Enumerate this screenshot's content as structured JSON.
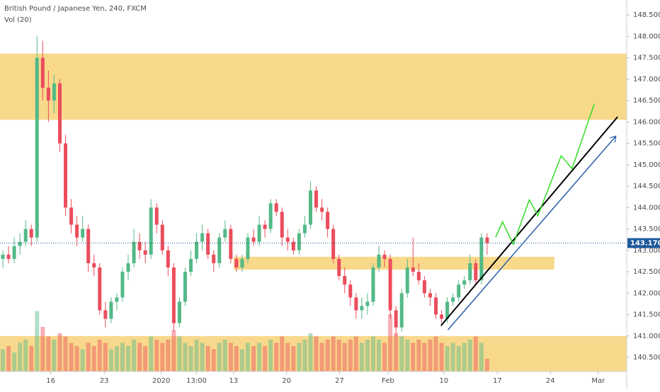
{
  "chart_data": {
    "type": "candlestick",
    "title": "British Pound / Japanese Yen, 240, FXCM",
    "subtitle": "Vol (20)",
    "up_color": "#53b987",
    "down_color": "#eb4d5c",
    "zone_color": "#f7d57f",
    "xlim": [
      0,
      110
    ],
    "ylim": [
      140.17,
      148.85
    ],
    "vlim": [
      0,
      100
    ],
    "yticks": [
      {
        "value": 140.5,
        "label": "140.500"
      },
      {
        "value": 141,
        "label": "141.000"
      },
      {
        "value": 141.5,
        "label": "141.500"
      },
      {
        "value": 142,
        "label": "142.000"
      },
      {
        "value": 142.5,
        "label": "142.500"
      },
      {
        "value": 143,
        "label": "143.000"
      },
      {
        "value": 143.5,
        "label": "143.500"
      },
      {
        "value": 144,
        "label": "144.000"
      },
      {
        "value": 144.5,
        "label": "144.500"
      },
      {
        "value": 145,
        "label": "145.000"
      },
      {
        "value": 145.5,
        "label": "145.500"
      },
      {
        "value": 146,
        "label": "146.000"
      },
      {
        "value": 146.5,
        "label": "146.500"
      },
      {
        "value": 147,
        "label": "147.000"
      },
      {
        "value": 147.5,
        "label": "147.500"
      },
      {
        "value": 148,
        "label": "148.000"
      },
      {
        "value": 148.5,
        "label": "148.500"
      }
    ],
    "xticks": [
      {
        "value": 8.9,
        "label": "16"
      },
      {
        "value": 18.3,
        "label": "23"
      },
      {
        "value": 28.3,
        "label": "2020"
      },
      {
        "value": 34.5,
        "label": "13:00"
      },
      {
        "value": 41,
        "label": "13"
      },
      {
        "value": 50.3,
        "label": "20"
      },
      {
        "value": 59.6,
        "label": "27"
      },
      {
        "value": 68.1,
        "label": "Feb"
      },
      {
        "value": 77.9,
        "label": "10"
      },
      {
        "value": 87.3,
        "label": "17"
      },
      {
        "value": 96.6,
        "label": "24"
      },
      {
        "value": 105,
        "label": "Mar"
      }
    ],
    "last_price": {
      "value": 143.17,
      "label": "143.170"
    },
    "zones": [
      {
        "y": [
          146.05,
          147.6
        ]
      },
      {
        "y": [
          142.55,
          142.85
        ],
        "x": [
          41,
          97.3
        ]
      },
      {
        "y": [
          140.17,
          141.0
        ]
      }
    ],
    "lines": [
      {
        "color": "#000000",
        "points": [
          [
            77.4,
            141.24
          ],
          [
            108.4,
            146.12
          ]
        ]
      },
      {
        "color": "#2a5ea8",
        "arrow": true,
        "points": [
          [
            78.6,
            141.14
          ],
          [
            108.1,
            145.67
          ]
        ]
      },
      {
        "color": "#33dd22",
        "points": [
          [
            87.0,
            143.31
          ],
          [
            88.2,
            143.67
          ],
          [
            90.1,
            143.14
          ],
          [
            92.9,
            144.18
          ],
          [
            94.4,
            143.81
          ],
          [
            98.5,
            145.21
          ],
          [
            100.4,
            144.91
          ],
          [
            104.3,
            146.42
          ]
        ]
      }
    ],
    "candles": [
      [
        142.8,
        143.0,
        142.6,
        142.9
      ],
      [
        142.9,
        143.1,
        142.7,
        142.8
      ],
      [
        142.8,
        143.3,
        142.7,
        143.1
      ],
      [
        143.1,
        143.4,
        142.9,
        143.2
      ],
      [
        143.2,
        143.7,
        143.1,
        143.5
      ],
      [
        143.5,
        143.6,
        143.1,
        143.3
      ],
      [
        143.3,
        148.0,
        143.2,
        147.5
      ],
      [
        147.5,
        147.9,
        146.5,
        146.8
      ],
      [
        146.8,
        147.2,
        146.0,
        146.5
      ],
      [
        146.5,
        147.1,
        146.2,
        146.9
      ],
      [
        146.9,
        147.0,
        145.3,
        145.5
      ],
      [
        145.5,
        145.7,
        143.8,
        144.0
      ],
      [
        144.0,
        144.2,
        143.4,
        143.6
      ],
      [
        143.6,
        143.8,
        143.1,
        143.3
      ],
      [
        143.3,
        143.8,
        143.2,
        143.5
      ],
      [
        143.5,
        143.6,
        142.5,
        142.7
      ],
      [
        142.7,
        142.9,
        142.4,
        142.6
      ],
      [
        142.6,
        142.7,
        141.5,
        141.6
      ],
      [
        141.6,
        141.8,
        141.2,
        141.4
      ],
      [
        141.4,
        141.9,
        141.3,
        141.8
      ],
      [
        141.8,
        142.0,
        141.6,
        141.9
      ],
      [
        141.9,
        142.6,
        141.8,
        142.5
      ],
      [
        142.5,
        142.9,
        142.3,
        142.7
      ],
      [
        142.7,
        143.5,
        142.6,
        143.2
      ],
      [
        143.2,
        143.4,
        142.8,
        143.0
      ],
      [
        143.0,
        143.2,
        142.7,
        142.9
      ],
      [
        142.9,
        144.2,
        142.8,
        144.0
      ],
      [
        144.0,
        144.1,
        143.4,
        143.6
      ],
      [
        143.6,
        143.7,
        142.9,
        143.0
      ],
      [
        143.0,
        143.1,
        142.4,
        142.6
      ],
      [
        142.6,
        142.7,
        141.1,
        141.3
      ],
      [
        141.3,
        141.9,
        141.2,
        141.8
      ],
      [
        141.8,
        142.6,
        141.7,
        142.5
      ],
      [
        142.5,
        143.0,
        142.4,
        142.8
      ],
      [
        142.8,
        143.4,
        142.7,
        143.2
      ],
      [
        143.2,
        143.6,
        143.0,
        143.4
      ],
      [
        143.4,
        143.5,
        142.8,
        142.9
      ],
      [
        142.9,
        143.0,
        142.5,
        142.7
      ],
      [
        142.7,
        143.4,
        142.6,
        143.3
      ],
      [
        143.3,
        143.7,
        143.2,
        143.5
      ],
      [
        143.5,
        143.6,
        142.7,
        142.8
      ],
      [
        142.8,
        142.9,
        142.5,
        142.6
      ],
      [
        142.6,
        142.9,
        142.5,
        142.8
      ],
      [
        142.8,
        143.4,
        142.7,
        143.3
      ],
      [
        143.3,
        143.5,
        143.1,
        143.2
      ],
      [
        143.2,
        143.8,
        143.1,
        143.6
      ],
      [
        143.6,
        143.7,
        143.3,
        143.5
      ],
      [
        143.5,
        144.2,
        143.4,
        144.1
      ],
      [
        144.1,
        144.2,
        143.8,
        143.9
      ],
      [
        143.9,
        144.0,
        143.1,
        143.3
      ],
      [
        143.3,
        143.5,
        143.0,
        143.2
      ],
      [
        143.2,
        143.3,
        142.9,
        143.0
      ],
      [
        143.0,
        143.5,
        142.9,
        143.4
      ],
      [
        143.4,
        143.8,
        143.3,
        143.6
      ],
      [
        143.6,
        144.6,
        143.5,
        144.4
      ],
      [
        144.4,
        144.5,
        143.9,
        144.0
      ],
      [
        144.0,
        144.2,
        143.7,
        143.9
      ],
      [
        143.9,
        144.0,
        143.3,
        143.5
      ],
      [
        143.5,
        143.6,
        142.7,
        142.8
      ],
      [
        142.8,
        142.9,
        142.3,
        142.4
      ],
      [
        142.4,
        142.6,
        142.0,
        142.2
      ],
      [
        142.2,
        142.3,
        141.7,
        141.9
      ],
      [
        141.9,
        142.0,
        141.4,
        141.6
      ],
      [
        141.6,
        141.9,
        141.4,
        141.7
      ],
      [
        141.7,
        142.0,
        141.5,
        141.8
      ],
      [
        141.8,
        142.7,
        141.7,
        142.6
      ],
      [
        142.6,
        143.1,
        142.5,
        142.9
      ],
      [
        142.9,
        143.0,
        142.6,
        142.8
      ],
      [
        142.8,
        142.9,
        141.4,
        141.6
      ],
      [
        141.6,
        141.7,
        141.0,
        141.2
      ],
      [
        141.2,
        142.1,
        141.1,
        142.0
      ],
      [
        142.0,
        142.8,
        141.9,
        142.6
      ],
      [
        142.6,
        143.3,
        142.4,
        142.5
      ],
      [
        142.5,
        142.7,
        142.2,
        142.3
      ],
      [
        142.3,
        142.4,
        141.9,
        142.0
      ],
      [
        142.0,
        142.1,
        141.7,
        141.9
      ],
      [
        141.9,
        142.0,
        141.4,
        141.5
      ],
      [
        141.5,
        141.6,
        141.3,
        141.4
      ],
      [
        141.4,
        141.9,
        141.3,
        141.8
      ],
      [
        141.8,
        142.0,
        141.7,
        141.9
      ],
      [
        141.9,
        142.3,
        141.8,
        142.2
      ],
      [
        142.2,
        142.4,
        142.1,
        142.3
      ],
      [
        142.3,
        142.9,
        142.2,
        142.7
      ],
      [
        142.7,
        142.8,
        142.2,
        142.3
      ],
      [
        142.3,
        143.4,
        142.2,
        143.3
      ],
      [
        143.3,
        143.4,
        142.9,
        143.17
      ]
    ],
    "volumes": [
      35,
      40,
      30,
      45,
      50,
      40,
      95,
      70,
      55,
      50,
      60,
      55,
      45,
      40,
      35,
      45,
      40,
      50,
      45,
      35,
      40,
      45,
      40,
      50,
      45,
      40,
      55,
      50,
      45,
      50,
      65,
      55,
      45,
      40,
      50,
      45,
      40,
      35,
      45,
      50,
      45,
      40,
      35,
      45,
      40,
      45,
      40,
      50,
      45,
      55,
      45,
      40,
      45,
      50,
      60,
      55,
      45,
      50,
      55,
      50,
      45,
      50,
      55,
      45,
      50,
      55,
      50,
      45,
      90,
      60,
      55,
      50,
      45,
      50,
      45,
      50,
      55,
      45,
      40,
      45,
      40,
      45,
      50,
      55,
      45,
      20
    ]
  }
}
